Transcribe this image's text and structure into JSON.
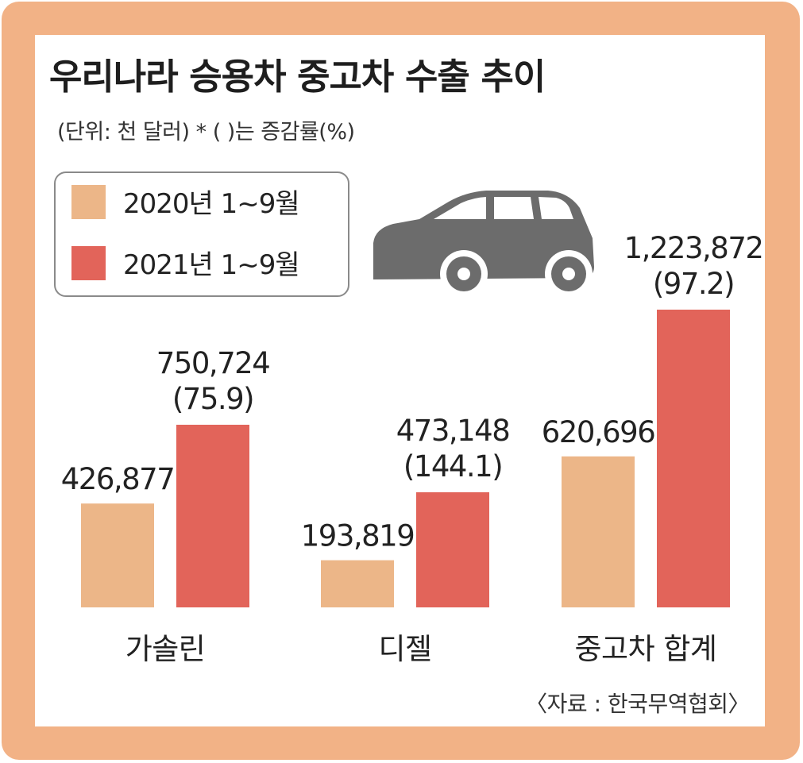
{
  "title": "우리나라 승용차 중고차 수출 추이",
  "subtitle": "(단위: 천 달러)  * (    )는 증감률(%)",
  "source": "〈자료 : 한국무역협회〉",
  "colors": {
    "series2020": "#ecb688",
    "series2021": "#e2645a",
    "frame": "#f2b286",
    "car": "#6c6c6c"
  },
  "icons": [
    "car-icon"
  ],
  "chart_data": {
    "type": "bar",
    "categories": [
      "가솔린",
      "디젤",
      "중고차 합계"
    ],
    "series": [
      {
        "name": "2020년 1~9월",
        "values": [
          426877,
          193819,
          620696
        ],
        "labels": [
          "426,877",
          "193,819",
          "620,696"
        ]
      },
      {
        "name": "2021년 1~9월",
        "values": [
          750724,
          473148,
          1223872
        ],
        "labels": [
          "750,724",
          "473,148",
          "1,223,872"
        ],
        "change_labels": [
          "(75.9)",
          "(144.1)",
          "(97.2)"
        ]
      }
    ],
    "title": "우리나라 승용차 중고차 수출 추이",
    "legend": "top-left",
    "grid": false
  }
}
